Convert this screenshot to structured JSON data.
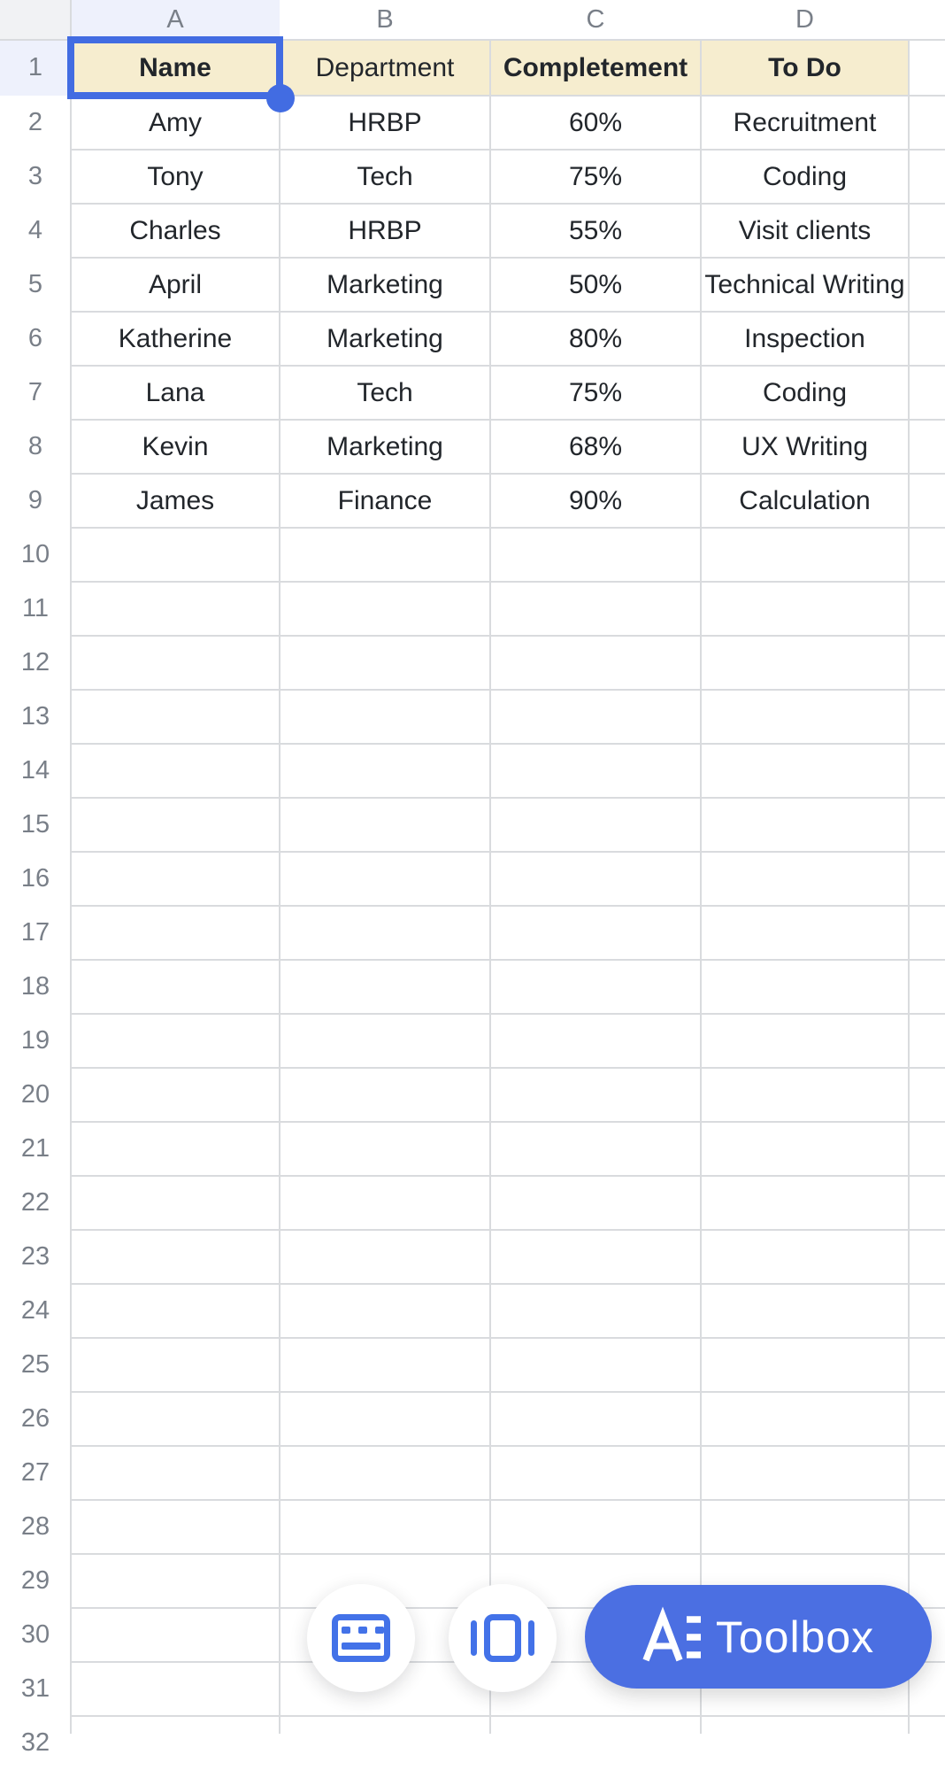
{
  "sheet": {
    "column_letters": [
      "A",
      "B",
      "C",
      "D"
    ],
    "visible_row_numbers": [
      "1",
      "2",
      "3",
      "4",
      "5",
      "6",
      "7",
      "8",
      "9",
      "10",
      "11",
      "12",
      "13",
      "14",
      "15",
      "16",
      "17",
      "18",
      "19",
      "20",
      "21",
      "22",
      "23",
      "24",
      "25",
      "26",
      "27",
      "28",
      "29",
      "30",
      "31",
      "32"
    ],
    "selected_cell": "A1",
    "selected_column": "A",
    "selected_row": "1",
    "header_row": {
      "cells": [
        {
          "text": "Name",
          "bold": true
        },
        {
          "text": "Department",
          "bold": false
        },
        {
          "text": "Completement",
          "bold": true
        },
        {
          "text": "To Do",
          "bold": true
        }
      ]
    },
    "data_rows": [
      {
        "row": "2",
        "cells": [
          "Amy",
          "HRBP",
          "60%",
          "Recruitment"
        ]
      },
      {
        "row": "3",
        "cells": [
          "Tony",
          "Tech",
          "75%",
          "Coding"
        ]
      },
      {
        "row": "4",
        "cells": [
          "Charles",
          "HRBP",
          "55%",
          "Visit clients"
        ]
      },
      {
        "row": "5",
        "cells": [
          "April",
          "Marketing",
          "50%",
          "Technical Writing"
        ]
      },
      {
        "row": "6",
        "cells": [
          "Katherine",
          "Marketing",
          "80%",
          "Inspection"
        ]
      },
      {
        "row": "7",
        "cells": [
          "Lana",
          "Tech",
          "75%",
          "Coding"
        ]
      },
      {
        "row": "8",
        "cells": [
          "Kevin",
          "Marketing",
          "68%",
          "UX Writing"
        ]
      },
      {
        "row": "9",
        "cells": [
          "James",
          "Finance",
          "90%",
          "Calculation"
        ]
      }
    ]
  },
  "floating_bar": {
    "keyboard_button": {
      "icon": "keyboard-icon"
    },
    "card_view_button": {
      "icon": "card-view-icon"
    },
    "toolbox_button": {
      "logo": "AE",
      "label": "Toolbox"
    }
  },
  "colors": {
    "selection_blue": "#426ce2",
    "button_blue": "#4b6fe2",
    "icon_blue": "#4372e8",
    "header_fill": "#f6edcf",
    "selected_header_fill": "#eef1fc",
    "corner_fill": "#f1f2f4",
    "gridline": "#d9dbde",
    "header_text": "#797f88",
    "cell_text": "#22262b"
  }
}
